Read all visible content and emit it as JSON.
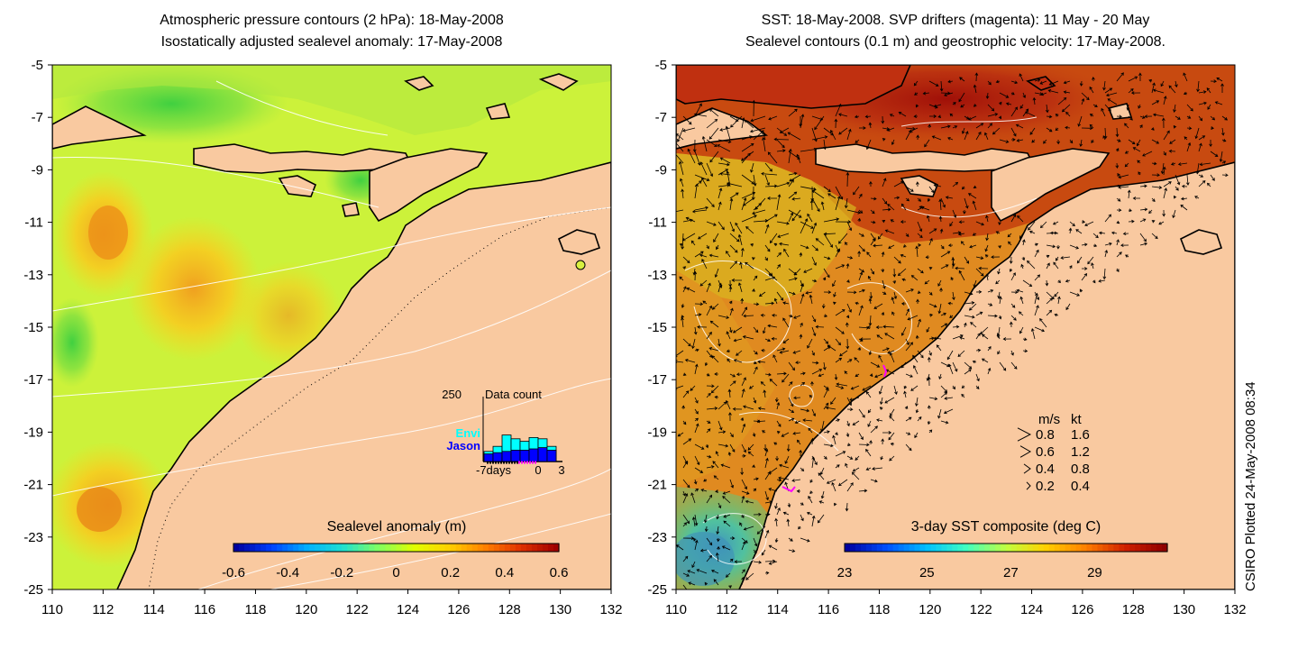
{
  "left": {
    "title1": "Atmospheric pressure contours (2 hPa): 18-May-2008",
    "title2": "Isostatically adjusted sealevel anomaly: 17-May-2008",
    "colorbar_title": "Sealevel anomaly (m)",
    "colorbar_ticks": [
      "-0.6",
      "-0.4",
      "-0.2",
      "0",
      "0.2",
      "0.4",
      "0.6"
    ],
    "colorbar_colors": [
      "#0000a0",
      "#0040ff",
      "#00b0ff",
      "#20e0d0",
      "#80ff60",
      "#e0ff00",
      "#ffd000",
      "#ff8000",
      "#e03000",
      "#a00000"
    ],
    "inset": {
      "label_count": "Data count",
      "label_250": "250",
      "label_envi": "Envi",
      "label_jason": "Jason",
      "axis_left": "-7days",
      "axis_mid": "0",
      "axis_right": "3",
      "envi_color": "#00ffff",
      "jason_color": "#0000ff",
      "envi_values": [
        40,
        60,
        105,
        90,
        80,
        95,
        90,
        60
      ],
      "jason_values": [
        30,
        35,
        40,
        45,
        45,
        50,
        55,
        45
      ]
    }
  },
  "right": {
    "title1": "SST: 18-May-2008. SVP drifters (magenta): 11 May - 20 May",
    "title2": "Sealevel contours (0.1 m) and geostrophic velocity: 17-May-2008.",
    "colorbar_title": "3-day SST composite (deg C)",
    "colorbar_ticks": [
      "23",
      "25",
      "27",
      "29"
    ],
    "colorbar_colors": [
      "#0000a0",
      "#0050ff",
      "#00c0ff",
      "#40ffc0",
      "#c0ff40",
      "#ffd000",
      "#ff8000",
      "#d02000",
      "#900000"
    ],
    "legend": {
      "head_ms": "m/s",
      "head_kt": "kt",
      "rows": [
        {
          "ms": "0.8",
          "kt": "1.6"
        },
        {
          "ms": "0.6",
          "kt": "1.2"
        },
        {
          "ms": "0.4",
          "kt": "0.8"
        },
        {
          "ms": "0.2",
          "kt": "0.4"
        }
      ]
    }
  },
  "axes": {
    "lon_ticks": [
      "110",
      "112",
      "114",
      "116",
      "118",
      "120",
      "122",
      "124",
      "126",
      "128",
      "130",
      "132"
    ],
    "lat_ticks": [
      "-5",
      "-7",
      "-9",
      "-11",
      "-13",
      "-15",
      "-17",
      "-19",
      "-21",
      "-23",
      "-25"
    ]
  },
  "colors": {
    "land": "#f9c9a0",
    "ocean_left": "#ccf23a",
    "ocean_right_warm": "#c84a10",
    "ocean_right_mid": "#e89020"
  },
  "credit": "CSIRO Plotted 24-May-2008 08:34"
}
